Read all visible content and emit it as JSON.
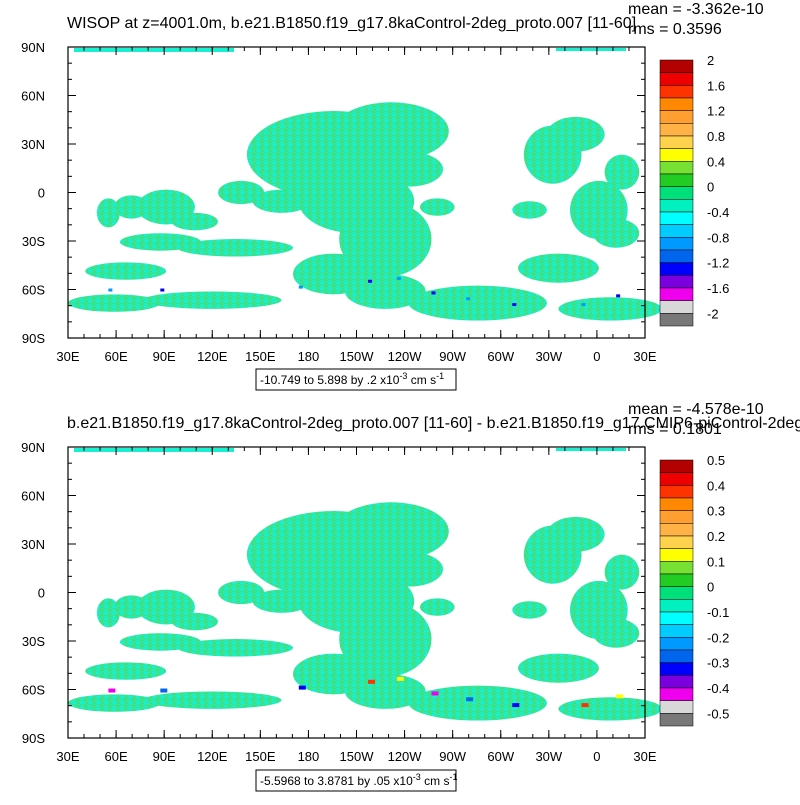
{
  "chart_data": [
    {
      "type": "heatmap",
      "title": "WISOP at z=4001.0m, b.e21.B1850.f19_g17.8kaControl-2deg_proto.007 [11-60]",
      "stats": {
        "mean": "mean = -3.362e-10",
        "rms": "rms = 0.3596"
      },
      "x_ticks": [
        "30E",
        "60E",
        "90E",
        "120E",
        "150E",
        "180",
        "150W",
        "120W",
        "90W",
        "60W",
        "30W",
        "0",
        "30E"
      ],
      "y_ticks": [
        "90N",
        "60N",
        "30N",
        "0",
        "30S",
        "60S",
        "90S"
      ],
      "colorbar": {
        "labels": [
          "2",
          "1.6",
          "1.2",
          "0.8",
          "0.4",
          "0",
          "-0.4",
          "-0.8",
          "-1.2",
          "-1.6",
          "-2"
        ],
        "colors": [
          "#b30000",
          "#ee0000",
          "#ff3300",
          "#ff8800",
          "#ff9f2f",
          "#ffb347",
          "#ffd24d",
          "#ffff00",
          "#77e033",
          "#22cc22",
          "#00e07a",
          "#00f0c0",
          "#00ffff",
          "#00ccff",
          "#0099ff",
          "#0066ee",
          "#0000ff",
          "#7a00dd",
          "#ee00ee",
          "#d8d8d8",
          "#787878"
        ]
      },
      "range_note": "-10.749 to 5.898 by .2 x10",
      "range_exp": "-3",
      "range_unit": " cm s",
      "range_unit_exp": "-1"
    },
    {
      "type": "heatmap",
      "title": "b.e21.B1850.f19_g17.8kaControl-2deg_proto.007 [11-60] - b.e21.B1850.f19_g17.CMIP6-piControl-2deg",
      "stats": {
        "mean": "mean = -4.578e-10",
        "rms": "rms = 0.1801"
      },
      "x_ticks": [
        "30E",
        "60E",
        "90E",
        "120E",
        "150E",
        "180",
        "150W",
        "120W",
        "90W",
        "60W",
        "30W",
        "0",
        "30E"
      ],
      "y_ticks": [
        "90N",
        "60N",
        "30N",
        "0",
        "30S",
        "60S",
        "90S"
      ],
      "colorbar": {
        "labels": [
          "0.5",
          "0.4",
          "0.3",
          "0.2",
          "0.1",
          "0",
          "-0.1",
          "-0.2",
          "-0.3",
          "-0.4",
          "-0.5"
        ],
        "colors": [
          "#b30000",
          "#ee0000",
          "#ff3300",
          "#ff8800",
          "#ff9f2f",
          "#ffb347",
          "#ffd24d",
          "#ffff00",
          "#77e033",
          "#22cc22",
          "#00e07a",
          "#00f0c0",
          "#00ffff",
          "#00ccff",
          "#0099ff",
          "#0066ee",
          "#0000ff",
          "#7a00dd",
          "#ee00ee",
          "#d8d8d8",
          "#787878"
        ]
      },
      "range_note": "-5.5968 to 3.8781 by .05 x10",
      "range_exp": "-3",
      "range_unit": " cm s",
      "range_unit_exp": "-1"
    }
  ]
}
